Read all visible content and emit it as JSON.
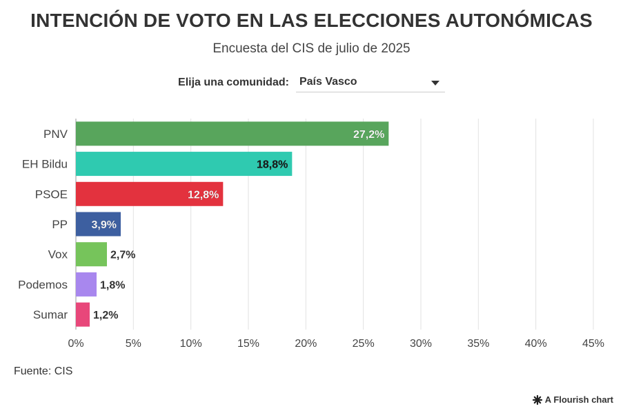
{
  "header": {
    "title": "INTENCIÓN DE VOTO EN LAS ELECCIONES AUTONÓMICAS",
    "subtitle": "Encuesta del CIS de julio de 2025"
  },
  "control": {
    "label": "Elija una comunidad:",
    "selected": "País Vasco"
  },
  "footer": {
    "source": "Fuente: CIS",
    "credit": "A Flourish chart"
  },
  "chart_data": {
    "type": "bar",
    "orientation": "horizontal",
    "title": "INTENCIÓN DE VOTO EN LAS ELECCIONES AUTONÓMICAS",
    "subtitle": "Encuesta del CIS de julio de 2025",
    "categories": [
      "PNV",
      "EH Bildu",
      "PSOE",
      "PP",
      "Vox",
      "Podemos",
      "Sumar"
    ],
    "values": [
      27.2,
      18.8,
      12.8,
      3.9,
      2.7,
      1.8,
      1.2
    ],
    "labels": [
      "27,2%",
      "18,8%",
      "12,8%",
      "3,9%",
      "2,7%",
      "1,8%",
      "1,2%"
    ],
    "colors": [
      "#58a55c",
      "#2fcab0",
      "#e3323e",
      "#3d5fa0",
      "#76c45b",
      "#a887ee",
      "#e8477a"
    ],
    "label_inside": [
      true,
      true,
      true,
      true,
      false,
      false,
      false
    ],
    "label_colors": [
      "#ffffff",
      "#1a1a1a",
      "#ffffff",
      "#ffffff",
      "#333333",
      "#333333",
      "#333333"
    ],
    "xlim": [
      0,
      45
    ],
    "xticks": [
      0,
      5,
      10,
      15,
      20,
      25,
      30,
      35,
      40,
      45
    ],
    "xtick_labels": [
      "0%",
      "5%",
      "10%",
      "15%",
      "20%",
      "25%",
      "30%",
      "35%",
      "40%",
      "45%"
    ],
    "grid": true,
    "legend": "none"
  }
}
